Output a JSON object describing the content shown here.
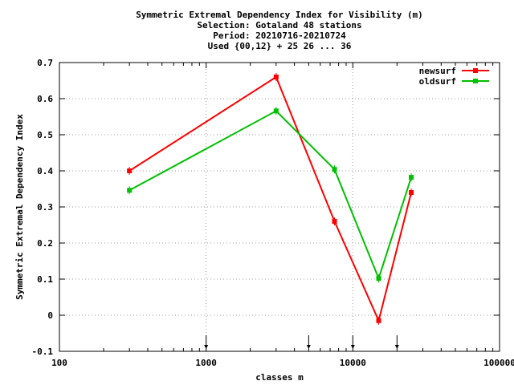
{
  "chart_data": {
    "type": "line",
    "title_lines": [
      "Symmetric Extremal Dependency Index  for Visibility (m)",
      "Selection: Gotaland     48 stations",
      "Period: 20210716-20210724",
      "Used {00,12} + 25 26 ... 36"
    ],
    "xlabel": "classes m",
    "ylabel": "Symmetric Extremal Dependency Index",
    "x_scale": "log",
    "xlim": [
      100,
      100000
    ],
    "ylim": [
      -0.1,
      0.7
    ],
    "x_ticks": [
      100,
      1000,
      10000,
      100000
    ],
    "x_tick_labels": [
      "100",
      "1000",
      "10000",
      "100000"
    ],
    "y_ticks": [
      -0.1,
      0,
      0.1,
      0.2,
      0.3,
      0.4,
      0.5,
      0.6,
      0.7
    ],
    "y_tick_labels": [
      "-0.1",
      "0",
      "0.1",
      "0.2",
      "0.3",
      "0.4",
      "0.5",
      "0.6",
      "0.7"
    ],
    "grid": true,
    "legend_position": "top-right",
    "class_markers": [
      1000,
      5000,
      10000,
      20000
    ],
    "series": [
      {
        "name": "newsurf",
        "color": "#ff0000",
        "x": [
          300,
          3000,
          7500,
          15000,
          25000
        ],
        "y": [
          0.4,
          0.66,
          0.26,
          -0.015,
          0.34
        ]
      },
      {
        "name": "oldsurf",
        "color": "#00c000",
        "x": [
          300,
          3000,
          7500,
          15000,
          25000
        ],
        "y": [
          0.346,
          0.566,
          0.404,
          0.102,
          0.382
        ]
      }
    ]
  }
}
